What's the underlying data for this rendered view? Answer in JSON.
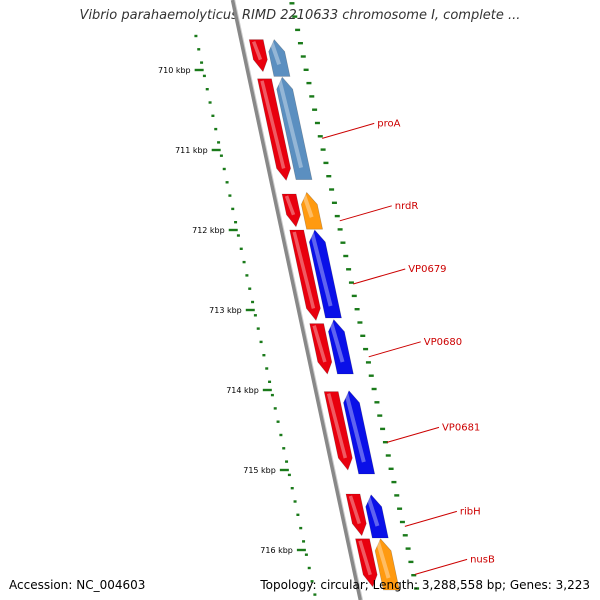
{
  "title": "Vibrio parahaemolyticus RIMD 2210633 chromosome I, complete ...",
  "footer": {
    "accession": "Accession: NC_004603",
    "summary": "Topology: circular; Length: 3,288,558 bp; Genes: 3,223"
  },
  "colors": {
    "forward_cds": "#e8000e",
    "reverse_cds_blue": "#0a10e8",
    "reverse_cds_steel": "#5b8fc0",
    "reverse_cds_orange": "#ff9a10",
    "backbone": "#888888",
    "ticks": "#1a7a1a",
    "gene_label": "#cc0000"
  },
  "ruler": [
    {
      "label": "710 kbp",
      "kbp": 710
    },
    {
      "label": "711 kbp",
      "kbp": 711
    },
    {
      "label": "712 kbp",
      "kbp": 712
    },
    {
      "label": "713 kbp",
      "kbp": 713
    },
    {
      "label": "714 kbp",
      "kbp": 714
    },
    {
      "label": "715 kbp",
      "kbp": 715
    },
    {
      "label": "716 kbp",
      "kbp": 716
    }
  ],
  "forward_genes": [
    {
      "start": 709.62,
      "end": 710.02
    },
    {
      "start": 710.11,
      "end": 711.38
    },
    {
      "start": 711.55,
      "end": 711.96
    },
    {
      "start": 712.0,
      "end": 713.13
    },
    {
      "start": 713.17,
      "end": 713.8
    },
    {
      "start": 714.02,
      "end": 715.0
    },
    {
      "start": 715.3,
      "end": 715.82
    },
    {
      "start": 715.86,
      "end": 716.46
    }
  ],
  "reverse_genes": [
    {
      "name": "",
      "start": 709.62,
      "end": 710.08,
      "color": "steel"
    },
    {
      "name": "proA",
      "start": 710.09,
      "end": 711.37,
      "color": "steel"
    },
    {
      "name": "nrdR",
      "start": 711.53,
      "end": 711.99,
      "color": "orange"
    },
    {
      "name": "VP0679",
      "start": 712.0,
      "end": 713.1,
      "color": "blue"
    },
    {
      "name": "VP0680",
      "start": 713.12,
      "end": 713.8,
      "color": "blue"
    },
    {
      "name": "VP0681",
      "start": 714.01,
      "end": 715.05,
      "color": "blue"
    },
    {
      "name": "ribH",
      "start": 715.31,
      "end": 715.85,
      "color": "blue"
    },
    {
      "name": "nusB",
      "start": 715.86,
      "end": 716.5,
      "color": "orange"
    }
  ]
}
